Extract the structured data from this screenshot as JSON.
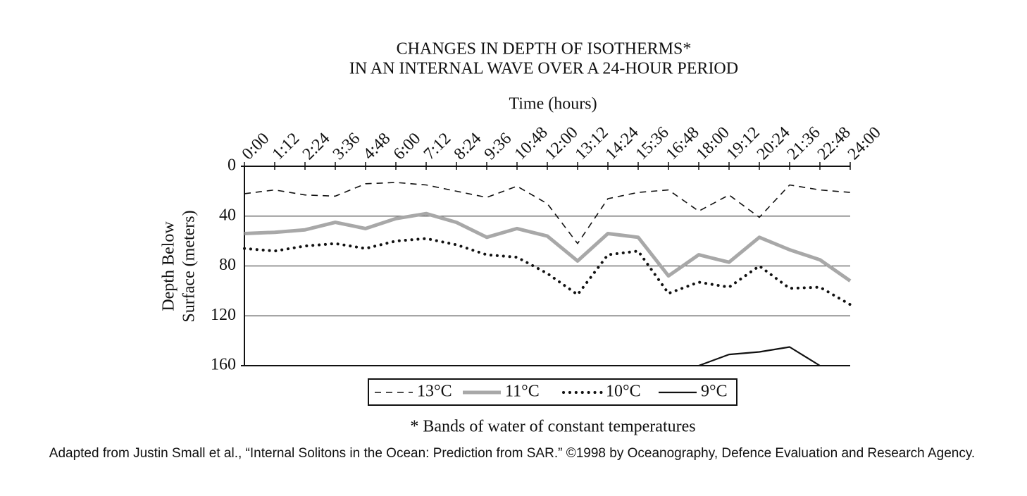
{
  "chart_data": {
    "type": "line",
    "title": [
      "CHANGES IN DEPTH OF ISOTHERMS*",
      "IN AN INTERNAL WAVE OVER A 24-HOUR PERIOD"
    ],
    "xlabel": "Time (hours)",
    "ylabel": [
      "Depth Below",
      "Surface (meters)"
    ],
    "categories": [
      "0:00",
      "1:12",
      "2:24",
      "3:36",
      "4:48",
      "6:00",
      "7:12",
      "8:24",
      "9:36",
      "10:48",
      "12:00",
      "13:12",
      "14:24",
      "15:36",
      "16:48",
      "18:00",
      "19:12",
      "20:24",
      "21:36",
      "22:48",
      "24:00"
    ],
    "ylim": [
      0,
      160
    ],
    "y_reversed": true,
    "yticks": [
      0,
      40,
      80,
      120,
      160
    ],
    "grid": true,
    "series": [
      {
        "name": "13°C",
        "color": "#111111",
        "line_style": "dashed",
        "line_width": 1.6,
        "values": [
          22,
          19,
          23,
          24,
          14,
          13,
          15,
          20,
          25,
          16,
          30,
          62,
          26,
          21,
          19,
          36,
          23,
          41,
          15,
          19,
          21
        ]
      },
      {
        "name": "11°C",
        "color": "#a8a8a8",
        "line_style": "solid",
        "line_width": 5,
        "values": [
          54,
          53,
          51,
          45,
          50,
          42,
          38,
          45,
          57,
          50,
          56,
          76,
          54,
          57,
          88,
          71,
          77,
          57,
          67,
          75,
          92
        ]
      },
      {
        "name": "10°C",
        "color": "#111111",
        "line_style": "dotted",
        "line_width": 4,
        "values": [
          66,
          68,
          64,
          62,
          66,
          60,
          58,
          63,
          71,
          73,
          86,
          103,
          71,
          68,
          102,
          93,
          97,
          80,
          98,
          97,
          111
        ]
      },
      {
        "name": "9°C",
        "color": "#111111",
        "line_style": "solid",
        "line_width": 2.2,
        "values": [
          null,
          null,
          null,
          null,
          null,
          null,
          null,
          null,
          null,
          null,
          null,
          null,
          null,
          null,
          null,
          160,
          151,
          149,
          145,
          160,
          null
        ]
      }
    ],
    "note": "* Bands of water of constant temperatures",
    "source": "Adapted from Justin Small et al., “Internal Solitons in the Ocean: Prediction from SAR.” ©1998 by Oceanography, Defence Evaluation and Research Agency."
  }
}
